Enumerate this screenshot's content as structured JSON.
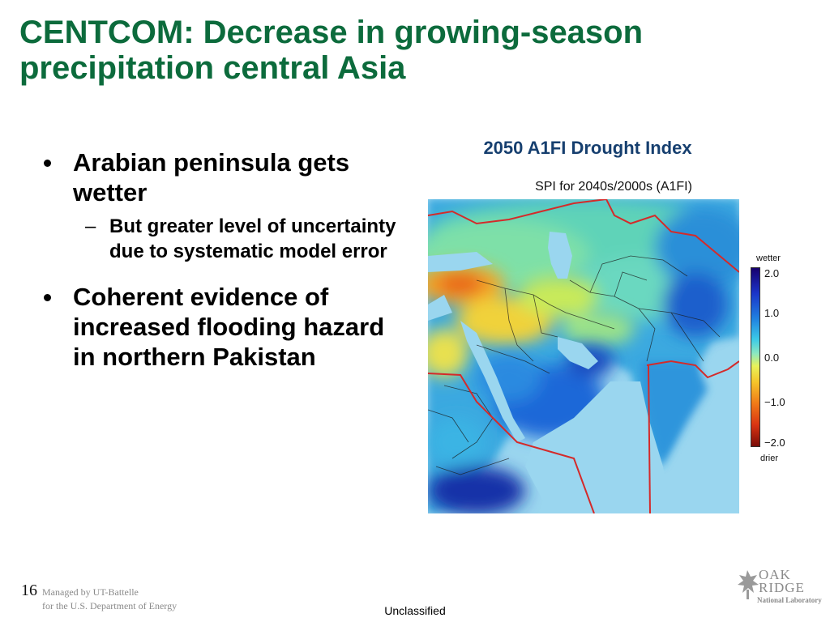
{
  "slide": {
    "title": "CENTCOM: Decrease in growing-season precipitation central Asia",
    "bullets": [
      {
        "text": "Arabian peninsula gets wetter",
        "sub": "But greater level of uncertainty due to systematic model error"
      },
      {
        "text": "Coherent evidence of increased flooding hazard in northern Pakistan"
      }
    ],
    "map_caption": "2050 A1FI Drought Index",
    "map_title": "SPI for 2040s/2000s (A1FI)",
    "legend": {
      "top_label": "wetter",
      "bottom_label": "drier",
      "ticks": [
        "2.0",
        "1.0",
        "0.0",
        "−1.0",
        "−2.0"
      ],
      "colors": [
        "#17006e",
        "#1f7fe0",
        "#8ce8c0",
        "#f6c52a",
        "#d93412",
        "#7a0c08"
      ]
    }
  },
  "footer": {
    "page_number": "16",
    "managed_line1": "Managed by UT-Battelle",
    "managed_line2": "for the U.S. Department of Energy",
    "classification": "Unclassified",
    "logo_line1": "OAK",
    "logo_line2": "RIDGE",
    "logo_line3": "National Laboratory"
  },
  "colors": {
    "title": "#0c6b3c",
    "caption": "#163f6f",
    "border_line": "#d42a2a",
    "sea": "#9ad6ef"
  }
}
